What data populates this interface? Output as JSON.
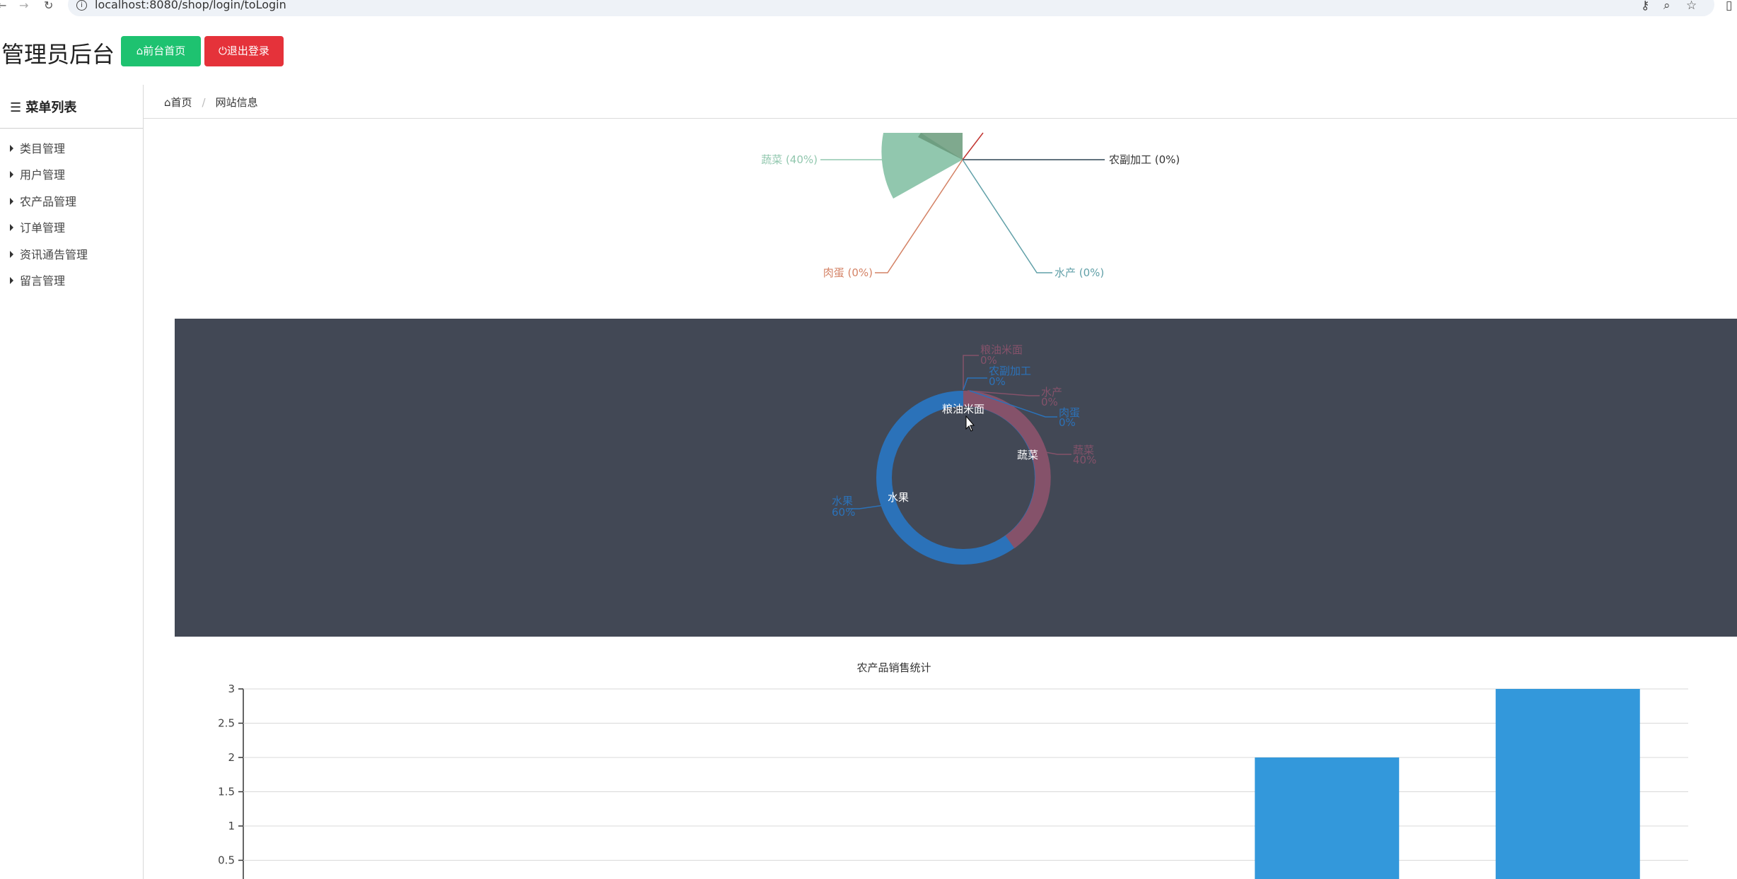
{
  "browser": {
    "back": "←",
    "forward": "→",
    "reload": "↻",
    "url": "localhost:8080/shop/login/toLogin"
  },
  "header": {
    "title": "管理员后台",
    "home_button": "前台首页",
    "logout_button": "退出登录"
  },
  "sidebar": {
    "title": "菜单列表",
    "items": [
      {
        "label": "类目管理"
      },
      {
        "label": "用户管理"
      },
      {
        "label": "农产品管理"
      },
      {
        "label": "订单管理"
      },
      {
        "label": "资讯通告管理"
      },
      {
        "label": "留言管理"
      }
    ]
  },
  "breadcrumb": {
    "home": "首页",
    "current": "网站信息"
  },
  "charts": {
    "pie_labels": [
      {
        "label": "蔬菜 (40%)"
      },
      {
        "label": "农副加工 (0%)"
      },
      {
        "label": "肉蛋 (0%)"
      },
      {
        "label": "水产 (0%)"
      }
    ],
    "donut_labels": [
      {
        "name": "粮油米面",
        "pct": "0%"
      },
      {
        "name": "农副加工",
        "pct": "0%"
      },
      {
        "name": "水产",
        "pct": "0%"
      },
      {
        "name": "肉蛋",
        "pct": "0%"
      },
      {
        "name": "蔬菜",
        "pct": "40%"
      },
      {
        "name": "水果",
        "pct": "60%"
      }
    ],
    "donut_inner": {
      "top": "粮油米面",
      "right": "蔬菜",
      "left": "水果"
    },
    "colors": {
      "pie_vegetable": "#91c7ae",
      "pie_dark": "#6e9e81",
      "donut_bg": "#424855",
      "donut_blue": "#2b72b9",
      "donut_red": "#85526a",
      "bar": "#3398db"
    }
  },
  "chart_data": [
    {
      "type": "pie",
      "slices": [
        {
          "label": "蔬菜",
          "value": 40
        },
        {
          "label": "农副加工",
          "value": 0
        },
        {
          "label": "肉蛋",
          "value": 0
        },
        {
          "label": "水产",
          "value": 0
        }
      ]
    },
    {
      "type": "pie",
      "slices": [
        {
          "label": "水果",
          "value": 60
        },
        {
          "label": "蔬菜",
          "value": 40
        },
        {
          "label": "肉蛋",
          "value": 0
        },
        {
          "label": "水产",
          "value": 0
        },
        {
          "label": "农副加工",
          "value": 0
        },
        {
          "label": "粮油米面",
          "value": 0
        }
      ]
    },
    {
      "type": "bar",
      "title": "农产品销售统计",
      "yticks": [
        "3",
        "2.5",
        "2",
        "1.5",
        "1",
        "0.5"
      ],
      "values": [
        0,
        0,
        0,
        0,
        2,
        3
      ],
      "ylim": [
        0,
        3
      ],
      "grid": true
    }
  ]
}
